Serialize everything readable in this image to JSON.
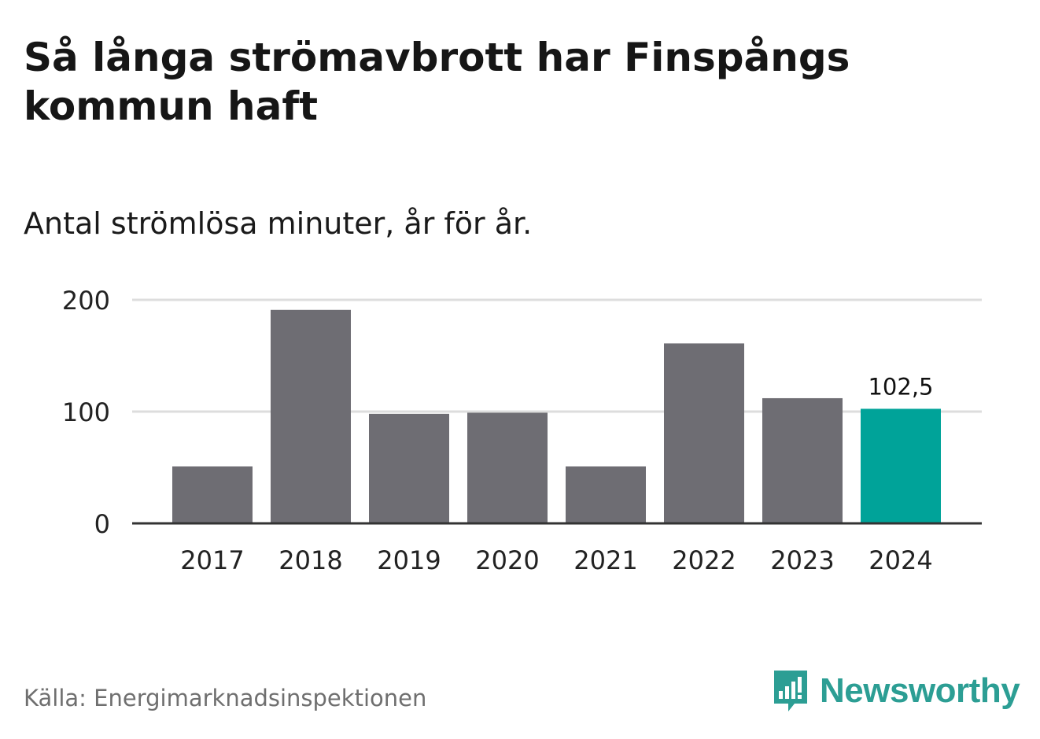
{
  "header": {
    "title": "Så långa strömavbrott har Finspångs kommun haft",
    "subtitle": "Antal strömlösa minuter, år för år."
  },
  "footer": {
    "source": "Källa: Energimarknadsinspektionen",
    "logo_text": "Newsworthy"
  },
  "colors": {
    "bar": "#6e6d73",
    "highlight": "#00a399",
    "grid": "#dddddd",
    "axis": "#333333",
    "brand": "#2c9e94"
  },
  "chart_data": {
    "type": "bar",
    "title": "Så långa strömavbrott har Finspångs kommun haft",
    "subtitle": "Antal strömlösa minuter, år för år.",
    "categories": [
      "2017",
      "2018",
      "2019",
      "2020",
      "2021",
      "2022",
      "2023",
      "2024"
    ],
    "values": [
      51,
      191,
      98,
      99,
      51,
      161,
      112,
      102.5
    ],
    "ylim": [
      0,
      200
    ],
    "yticks": [
      {
        "value": 0,
        "label": "0"
      },
      {
        "value": 100,
        "label": "100"
      },
      {
        "value": 200,
        "label": "200"
      }
    ],
    "highlight_index": 7,
    "data_labels": [
      {
        "index": 7,
        "label": "102,5"
      }
    ],
    "grid": true,
    "legend": "none"
  }
}
